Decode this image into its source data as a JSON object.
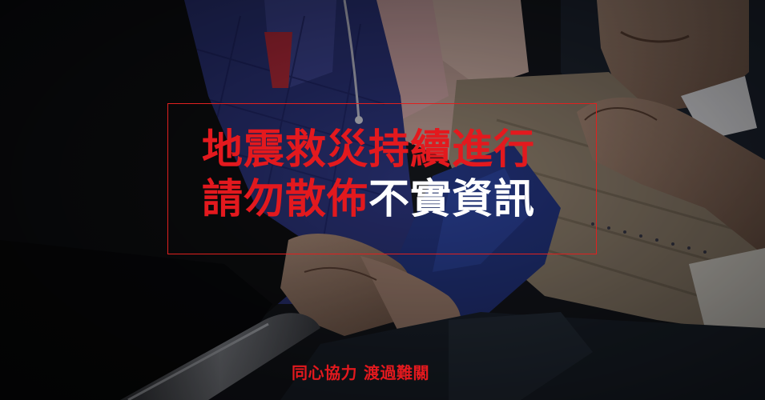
{
  "headline": {
    "line1": "地震救災持續進行",
    "line2_red": "請勿散佈",
    "line2_white": "不實資訊"
  },
  "tagline": {
    "part1": "同心協力",
    "part2": "渡過難關"
  },
  "colors": {
    "accent_red": "#e3191e",
    "frame_red": "#e0201f",
    "text_white": "#ffffff",
    "background": "#0b0b0d"
  }
}
